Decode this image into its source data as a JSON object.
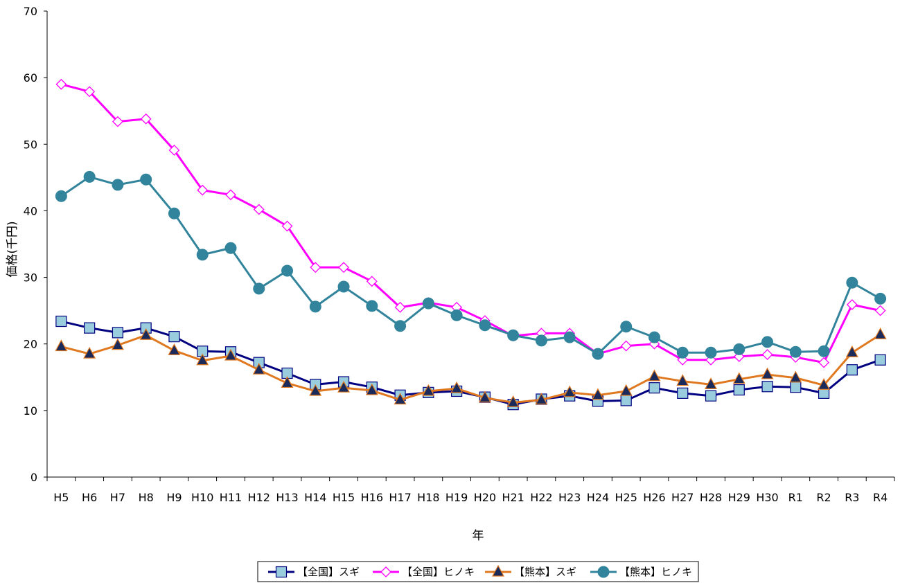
{
  "chart_data": {
    "type": "line",
    "title": "",
    "xlabel": "年",
    "ylabel": "価格(千円)",
    "ylim": [
      0,
      70
    ],
    "yticks": [
      0,
      10,
      20,
      30,
      40,
      50,
      60,
      70
    ],
    "grid": false,
    "legend_position": "bottom",
    "categories": [
      "H5",
      "H6",
      "H7",
      "H8",
      "H9",
      "H10",
      "H11",
      "H12",
      "H13",
      "H14",
      "H15",
      "H16",
      "H17",
      "H18",
      "H19",
      "H20",
      "H21",
      "H22",
      "H23",
      "H24",
      "H25",
      "H26",
      "H27",
      "H28",
      "H29",
      "H30",
      "R1",
      "R2",
      "R3",
      "R4"
    ],
    "series": [
      {
        "name": "【全国】スギ",
        "color": "#000080",
        "marker": "square",
        "marker_fill": "#99CCDD",
        "values": [
          23.4,
          22.4,
          21.7,
          22.4,
          21.1,
          18.9,
          18.8,
          17.2,
          15.6,
          13.9,
          14.3,
          13.5,
          12.3,
          12.7,
          12.9,
          12.0,
          10.9,
          11.7,
          12.2,
          11.4,
          11.5,
          13.4,
          12.6,
          12.2,
          13.1,
          13.6,
          13.5,
          12.6,
          16.1,
          17.6
        ]
      },
      {
        "name": "【全国】ヒノキ",
        "color": "#FF00FF",
        "marker": "diamond",
        "marker_fill": "#FFFFFF",
        "values": [
          59.0,
          57.9,
          53.4,
          53.8,
          49.1,
          43.1,
          42.4,
          40.2,
          37.7,
          31.5,
          31.5,
          29.4,
          25.5,
          26.2,
          25.5,
          23.5,
          21.2,
          21.6,
          21.6,
          18.5,
          19.7,
          20.0,
          17.6,
          17.6,
          18.1,
          18.4,
          18.0,
          17.2,
          25.9,
          25.0
        ]
      },
      {
        "name": "【熊本】スギ",
        "color": "#E07820",
        "marker": "triangle",
        "marker_fill": "#1A2A5A",
        "values": [
          19.6,
          18.5,
          19.8,
          21.3,
          19.0,
          17.5,
          18.2,
          16.1,
          14.1,
          12.9,
          13.4,
          13.0,
          11.6,
          12.9,
          13.3,
          11.9,
          11.2,
          11.6,
          12.7,
          12.3,
          12.9,
          15.1,
          14.4,
          13.9,
          14.7,
          15.4,
          14.9,
          13.8,
          18.7,
          21.4
        ]
      },
      {
        "name": "【熊本】ヒノキ",
        "color": "#31849B",
        "marker": "circle",
        "marker_fill": "#31849B",
        "values": [
          42.2,
          45.1,
          43.9,
          44.7,
          39.6,
          33.4,
          34.4,
          28.3,
          31.0,
          25.6,
          28.6,
          25.7,
          22.7,
          26.1,
          24.3,
          22.8,
          21.3,
          20.5,
          21.0,
          18.5,
          22.6,
          21.0,
          18.7,
          18.7,
          19.2,
          20.3,
          18.8,
          18.9,
          29.2,
          26.8
        ]
      }
    ]
  }
}
